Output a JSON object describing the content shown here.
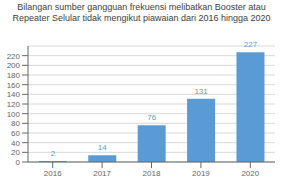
{
  "chart_data": {
    "type": "bar",
    "title": "Bilangan sumber gangguan frekuensi melibatkan Booster atau Repeater Selular tidak mengikut piawaian dari 2016 hingga 2020",
    "categories": [
      "2016",
      "2017",
      "2018",
      "2019",
      "2020"
    ],
    "values": [
      2,
      14,
      76,
      131,
      227
    ],
    "color": "#5B9BD5",
    "ylim": [
      0,
      240
    ],
    "yticks": [
      0,
      20,
      40,
      60,
      80,
      100,
      120,
      140,
      160,
      180,
      200,
      220
    ],
    "grid": true,
    "data_labels": true
  }
}
